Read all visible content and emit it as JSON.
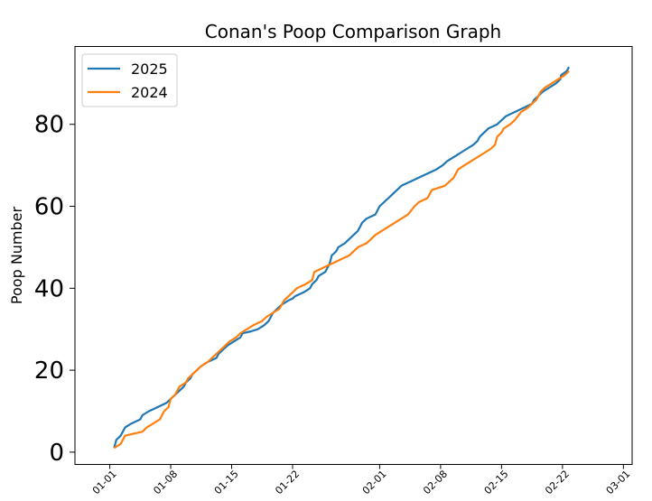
{
  "chart_data": {
    "type": "line",
    "title": "Conan's Poop Comparison Graph",
    "xlabel": "",
    "ylabel": "Poop Number",
    "xlim": [
      "2024-12-28",
      "2025-03-02"
    ],
    "ylim": [
      -3,
      99
    ],
    "yticks": [
      0,
      20,
      40,
      60,
      80
    ],
    "xticks": [
      {
        "date": "2025-01-01",
        "label": "01-01"
      },
      {
        "date": "2025-01-08",
        "label": "01-08"
      },
      {
        "date": "2025-01-15",
        "label": "01-15"
      },
      {
        "date": "2025-01-22",
        "label": "01-22"
      },
      {
        "date": "2025-02-01",
        "label": "02-01"
      },
      {
        "date": "2025-02-08",
        "label": "02-08"
      },
      {
        "date": "2025-02-15",
        "label": "02-15"
      },
      {
        "date": "2025-02-22",
        "label": "02-22"
      },
      {
        "date": "2025-03-01",
        "label": "03-01"
      }
    ],
    "grid": false,
    "legend_position": "top-left",
    "series": [
      {
        "name": "2025",
        "color": "#1f77b4",
        "points": [
          [
            "2025-01-01T12:00",
            1
          ],
          [
            "2025-01-01T18:00",
            3
          ],
          [
            "2025-01-02T06:00",
            4
          ],
          [
            "2025-01-02T12:00",
            5
          ],
          [
            "2025-01-02T18:00",
            6
          ],
          [
            "2025-01-03T12:00",
            7
          ],
          [
            "2025-01-04T12:00",
            8
          ],
          [
            "2025-01-04T18:00",
            9
          ],
          [
            "2025-01-05T12:00",
            10
          ],
          [
            "2025-01-06T12:00",
            11
          ],
          [
            "2025-01-07T12:00",
            12
          ],
          [
            "2025-01-08T00:00",
            13
          ],
          [
            "2025-01-08T12:00",
            14
          ],
          [
            "2025-01-09T00:00",
            15
          ],
          [
            "2025-01-09T12:00",
            16
          ],
          [
            "2025-01-09T18:00",
            17
          ],
          [
            "2025-01-10T06:00",
            18
          ],
          [
            "2025-01-10T12:00",
            19
          ],
          [
            "2025-01-11T00:00",
            20
          ],
          [
            "2025-01-11T12:00",
            21
          ],
          [
            "2025-01-12T06:00",
            22
          ],
          [
            "2025-01-13T06:00",
            23
          ],
          [
            "2025-01-13T12:00",
            24
          ],
          [
            "2025-01-14T00:00",
            25
          ],
          [
            "2025-01-14T12:00",
            26
          ],
          [
            "2025-01-15T06:00",
            27
          ],
          [
            "2025-01-16T00:00",
            28
          ],
          [
            "2025-01-16T06:00",
            29
          ],
          [
            "2025-01-17T06:00",
            29.5
          ],
          [
            "2025-01-18T00:00",
            30
          ],
          [
            "2025-01-18T18:00",
            31
          ],
          [
            "2025-01-19T06:00",
            32
          ],
          [
            "2025-01-19T12:00",
            33
          ],
          [
            "2025-01-19T18:00",
            34
          ],
          [
            "2025-01-20T06:00",
            35
          ],
          [
            "2025-01-20T18:00",
            36
          ],
          [
            "2025-01-21T12:00",
            37
          ],
          [
            "2025-01-22T00:00",
            37.5
          ],
          [
            "2025-01-22T06:00",
            38
          ],
          [
            "2025-01-23T06:00",
            39
          ],
          [
            "2025-01-24T00:00",
            40
          ],
          [
            "2025-01-24T06:00",
            41
          ],
          [
            "2025-01-24T18:00",
            42
          ],
          [
            "2025-01-25T00:00",
            43
          ],
          [
            "2025-01-25T18:00",
            44
          ],
          [
            "2025-01-26T06:00",
            46
          ],
          [
            "2025-01-26T12:00",
            48
          ],
          [
            "2025-01-27T00:00",
            49
          ],
          [
            "2025-01-27T06:00",
            50
          ],
          [
            "2025-01-28T00:00",
            51
          ],
          [
            "2025-01-28T12:00",
            52
          ],
          [
            "2025-01-29T00:00",
            53
          ],
          [
            "2025-01-29T12:00",
            54
          ],
          [
            "2025-01-30T00:00",
            56
          ],
          [
            "2025-01-30T12:00",
            57
          ],
          [
            "2025-01-31T12:00",
            58
          ],
          [
            "2025-02-01T00:00",
            60
          ],
          [
            "2025-02-01T12:00",
            61
          ],
          [
            "2025-02-02T00:00",
            62
          ],
          [
            "2025-02-02T12:00",
            63
          ],
          [
            "2025-02-03T00:00",
            64
          ],
          [
            "2025-02-03T12:00",
            65
          ],
          [
            "2025-02-04T12:00",
            66
          ],
          [
            "2025-02-05T12:00",
            67
          ],
          [
            "2025-02-06T12:00",
            68
          ],
          [
            "2025-02-07T12:00",
            69
          ],
          [
            "2025-02-08T06:00",
            70
          ],
          [
            "2025-02-08T18:00",
            71
          ],
          [
            "2025-02-09T12:00",
            72
          ],
          [
            "2025-02-10T06:00",
            73
          ],
          [
            "2025-02-11T00:00",
            74
          ],
          [
            "2025-02-11T18:00",
            75
          ],
          [
            "2025-02-12T06:00",
            76
          ],
          [
            "2025-02-12T12:00",
            77
          ],
          [
            "2025-02-13T00:00",
            78
          ],
          [
            "2025-02-13T12:00",
            79
          ],
          [
            "2025-02-14T12:00",
            80
          ],
          [
            "2025-02-15T00:00",
            81
          ],
          [
            "2025-02-15T12:00",
            82
          ],
          [
            "2025-02-16T12:00",
            83
          ],
          [
            "2025-02-17T12:00",
            84
          ],
          [
            "2025-02-18T12:00",
            85
          ],
          [
            "2025-02-18T18:00",
            86
          ],
          [
            "2025-02-19T06:00",
            87
          ],
          [
            "2025-02-19T18:00",
            88
          ],
          [
            "2025-02-20T12:00",
            89
          ],
          [
            "2025-02-21T06:00",
            90
          ],
          [
            "2025-02-21T18:00",
            91
          ],
          [
            "2025-02-21T20:00",
            92
          ],
          [
            "2025-02-22T12:00",
            93
          ],
          [
            "2025-02-22T18:00",
            94
          ]
        ]
      },
      {
        "name": "2024",
        "color": "#ff7f0e",
        "points": [
          [
            "2025-01-01T12:00",
            1
          ],
          [
            "2025-01-02T06:00",
            2
          ],
          [
            "2025-01-02T18:00",
            4
          ],
          [
            "2025-01-04T18:00",
            5
          ],
          [
            "2025-01-05T06:00",
            6
          ],
          [
            "2025-01-06T00:00",
            7
          ],
          [
            "2025-01-06T18:00",
            8
          ],
          [
            "2025-01-07T00:00",
            9
          ],
          [
            "2025-01-07T06:00",
            10
          ],
          [
            "2025-01-07T18:00",
            11
          ],
          [
            "2025-01-08T00:00",
            13
          ],
          [
            "2025-01-08T12:00",
            14
          ],
          [
            "2025-01-09T00:00",
            16
          ],
          [
            "2025-01-09T18:00",
            17
          ],
          [
            "2025-01-10T00:00",
            18
          ],
          [
            "2025-01-10T12:00",
            19
          ],
          [
            "2025-01-11T00:00",
            20
          ],
          [
            "2025-01-11T12:00",
            21
          ],
          [
            "2025-01-12T06:00",
            22
          ],
          [
            "2025-01-12T18:00",
            23
          ],
          [
            "2025-01-13T06:00",
            24
          ],
          [
            "2025-01-13T18:00",
            25
          ],
          [
            "2025-01-14T06:00",
            26
          ],
          [
            "2025-01-14T18:00",
            27
          ],
          [
            "2025-01-15T12:00",
            28
          ],
          [
            "2025-01-16T00:00",
            29
          ],
          [
            "2025-01-16T18:00",
            30
          ],
          [
            "2025-01-17T12:00",
            31
          ],
          [
            "2025-01-18T12:00",
            32
          ],
          [
            "2025-01-19T00:00",
            33
          ],
          [
            "2025-01-19T18:00",
            34
          ],
          [
            "2025-01-20T12:00",
            35
          ],
          [
            "2025-01-20T18:00",
            36
          ],
          [
            "2025-01-21T00:00",
            37
          ],
          [
            "2025-01-22T00:00",
            39
          ],
          [
            "2025-01-22T12:00",
            40
          ],
          [
            "2025-01-23T12:00",
            41
          ],
          [
            "2025-01-24T06:00",
            42
          ],
          [
            "2025-01-24T12:00",
            44
          ],
          [
            "2025-01-25T12:00",
            45
          ],
          [
            "2025-01-26T12:00",
            46
          ],
          [
            "2025-01-27T12:00",
            47
          ],
          [
            "2025-01-28T12:00",
            48
          ],
          [
            "2025-01-29T12:00",
            50
          ],
          [
            "2025-01-30T12:00",
            51
          ],
          [
            "2025-01-31T12:00",
            53
          ],
          [
            "2025-02-02T00:00",
            55
          ],
          [
            "2025-02-02T18:00",
            56
          ],
          [
            "2025-02-04T06:00",
            58
          ],
          [
            "2025-02-05T00:00",
            60
          ],
          [
            "2025-02-05T12:00",
            61
          ],
          [
            "2025-02-06T12:00",
            62
          ],
          [
            "2025-02-07T00:00",
            64
          ],
          [
            "2025-02-08T12:00",
            65
          ],
          [
            "2025-02-09T00:00",
            66
          ],
          [
            "2025-02-09T12:00",
            67
          ],
          [
            "2025-02-10T00:00",
            69
          ],
          [
            "2025-02-10T18:00",
            70
          ],
          [
            "2025-02-11T12:00",
            71
          ],
          [
            "2025-02-12T06:00",
            72
          ],
          [
            "2025-02-13T00:00",
            73
          ],
          [
            "2025-02-13T18:00",
            74
          ],
          [
            "2025-02-14T06:00",
            75
          ],
          [
            "2025-02-14T12:00",
            77
          ],
          [
            "2025-02-15T00:00",
            78
          ],
          [
            "2025-02-15T06:00",
            79
          ],
          [
            "2025-02-16T00:00",
            80
          ],
          [
            "2025-02-16T12:00",
            81
          ],
          [
            "2025-02-17T06:00",
            83
          ],
          [
            "2025-02-18T00:00",
            84
          ],
          [
            "2025-02-18T12:00",
            85
          ],
          [
            "2025-02-19T00:00",
            86
          ],
          [
            "2025-02-19T12:00",
            88
          ],
          [
            "2025-02-20T00:00",
            89
          ],
          [
            "2025-02-20T18:00",
            90
          ],
          [
            "2025-02-21T12:00",
            91
          ],
          [
            "2025-02-22T06:00",
            92
          ],
          [
            "2025-02-22T18:00",
            93
          ]
        ]
      }
    ]
  }
}
